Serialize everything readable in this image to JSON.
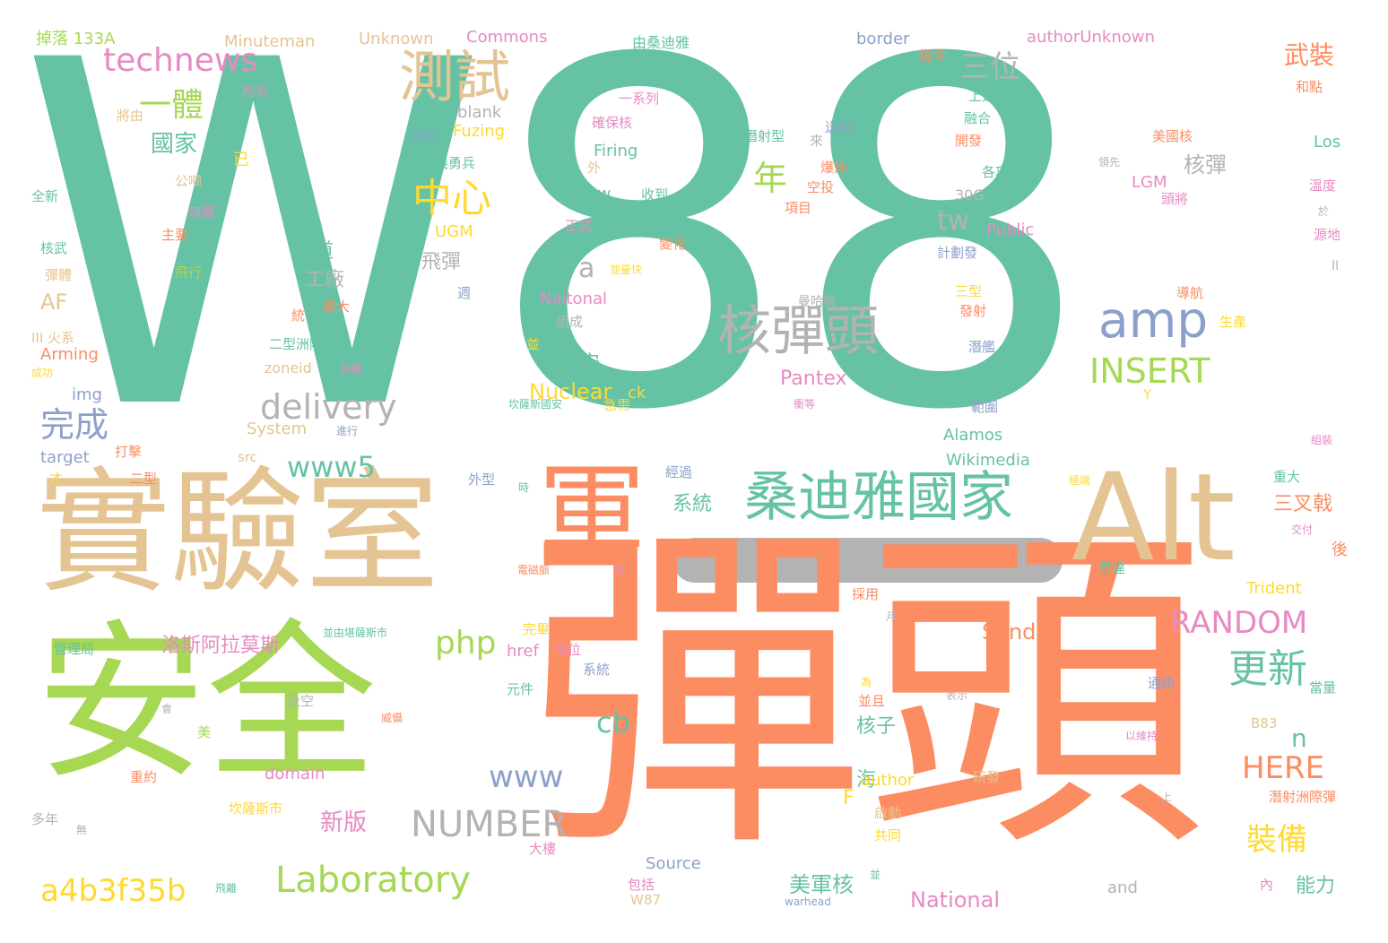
{
  "colors": {
    "green": "#66c2a5",
    "orange": "#fc8d62",
    "blue": "#8da0cb",
    "pink": "#e78ac3",
    "lime": "#a6d854",
    "yellow": "#ffd92f",
    "tan": "#e5c494",
    "gray": "#b3b3b3"
  },
  "words": [
    {
      "text": "W88",
      "color": "green"
    },
    {
      "text": "彈頭",
      "color": "orange"
    },
    {
      "text": "安全",
      "color": "lime"
    },
    {
      "text": "實驗室",
      "color": "tan"
    },
    {
      "text": "Alt",
      "color": "tan"
    },
    {
      "text": "軍",
      "color": "orange"
    },
    {
      "text": "桑迪雅國家",
      "color": "green"
    },
    {
      "text": "核彈頭",
      "color": "gray"
    },
    {
      "text": "amp",
      "color": "blue"
    },
    {
      "text": "INSERT",
      "color": "lime"
    },
    {
      "text": "測試",
      "color": "tan"
    },
    {
      "text": "technews",
      "color": "pink"
    },
    {
      "text": "一體",
      "color": "lime"
    },
    {
      "text": "三位",
      "color": "gray"
    },
    {
      "text": "中心",
      "color": "yellow"
    },
    {
      "text": "年",
      "color": "lime"
    },
    {
      "text": "delivery",
      "color": "gray"
    },
    {
      "text": "完成",
      "color": "blue"
    },
    {
      "text": "www5",
      "color": "green"
    },
    {
      "text": "RANDOM",
      "color": "pink"
    },
    {
      "text": "更新",
      "color": "green"
    },
    {
      "text": "php",
      "color": "lime"
    },
    {
      "text": "cb",
      "color": "green"
    },
    {
      "text": "www",
      "color": "blue"
    },
    {
      "text": "NUMBER",
      "color": "gray"
    },
    {
      "text": "Laboratory",
      "color": "lime"
    },
    {
      "text": "a4b3f35b",
      "color": "yellow"
    },
    {
      "text": "HERE",
      "color": "orange"
    },
    {
      "text": "裝備",
      "color": "yellow"
    },
    {
      "text": "tw",
      "color": "gray"
    },
    {
      "text": "a",
      "color": "gray"
    },
    {
      "text": "武裝",
      "color": "orange"
    },
    {
      "text": "國家",
      "color": "green"
    },
    {
      "text": "洛斯阿拉莫斯",
      "color": "pink"
    },
    {
      "text": "Nuclear",
      "color": "yellow"
    },
    {
      "text": "國安",
      "color": "green"
    },
    {
      "text": "Pantex",
      "color": "pink"
    },
    {
      "text": "National",
      "color": "pink"
    },
    {
      "text": "Sandia",
      "color": "orange"
    },
    {
      "text": "美軍核",
      "color": "green"
    },
    {
      "text": "新版",
      "color": "pink"
    },
    {
      "text": "核子",
      "color": "green"
    },
    {
      "text": "系統",
      "color": "green"
    },
    {
      "text": "能力",
      "color": "green"
    },
    {
      "text": "三叉戟",
      "color": "orange"
    },
    {
      "text": "n",
      "color": "green"
    },
    {
      "text": "飛彈",
      "color": "gray"
    },
    {
      "text": "核彈",
      "color": "gray"
    },
    {
      "text": "AF",
      "color": "tan"
    },
    {
      "text": "工廠",
      "color": "gray"
    },
    {
      "text": "道",
      "color": "green"
    },
    {
      "text": "海",
      "color": "green"
    },
    {
      "text": "F",
      "color": "yellow"
    },
    {
      "text": "掉落 133A",
      "color": "lime"
    },
    {
      "text": "Minuteman",
      "color": "tan"
    },
    {
      "text": "Unknown",
      "color": "tan"
    },
    {
      "text": "Commons",
      "color": "pink"
    },
    {
      "text": "由桑迪雅",
      "color": "green"
    },
    {
      "text": "能源部",
      "color": "green"
    },
    {
      "text": "border",
      "color": "blue"
    },
    {
      "text": "authorUnknown",
      "color": "pink"
    },
    {
      "text": "指令",
      "color": "orange"
    },
    {
      "text": "所有",
      "color": "pink"
    },
    {
      "text": "將由",
      "color": "tan"
    },
    {
      "text": "via",
      "color": "green"
    },
    {
      "text": "一系列",
      "color": "pink"
    },
    {
      "text": "blank",
      "color": "gray"
    },
    {
      "text": "Fuzing",
      "color": "yellow"
    },
    {
      "text": "確保核",
      "color": "pink"
    },
    {
      "text": "核心",
      "color": "blue"
    },
    {
      "text": "潛射型",
      "color": "green"
    },
    {
      "text": "來",
      "color": "gray"
    },
    {
      "text": "送到",
      "color": "blue"
    },
    {
      "text": "上週",
      "color": "green"
    },
    {
      "text": "融合",
      "color": "green"
    },
    {
      "text": "開發",
      "color": "orange"
    },
    {
      "text": "和點",
      "color": "orange"
    },
    {
      "text": "Los",
      "color": "green"
    },
    {
      "text": "美國核",
      "color": "orange"
    },
    {
      "text": "已",
      "color": "yellow"
    },
    {
      "text": "全新",
      "color": "green"
    },
    {
      "text": "公噸",
      "color": "tan"
    },
    {
      "text": "隸屬",
      "color": "pink"
    },
    {
      "text": "主要",
      "color": "orange"
    },
    {
      "text": "陸基義勇兵",
      "color": "green"
    },
    {
      "text": "Firing",
      "color": "green"
    },
    {
      "text": "外",
      "color": "tan"
    },
    {
      "text": "爆炸",
      "color": "orange"
    },
    {
      "text": "空投",
      "color": "orange"
    },
    {
      "text": "avw",
      "color": "green"
    },
    {
      "text": "收到",
      "color": "green"
    },
    {
      "text": "項目",
      "color": "orange"
    },
    {
      "text": "領先",
      "color": "gray"
    },
    {
      "text": "LGM",
      "color": "pink"
    },
    {
      "text": "頭將",
      "color": "pink"
    },
    {
      "text": "溫度",
      "color": "pink"
    },
    {
      "text": "各項",
      "color": "green"
    },
    {
      "text": "30G",
      "color": "gray"
    },
    {
      "text": "於",
      "color": "gray"
    },
    {
      "text": "源地",
      "color": "pink"
    },
    {
      "text": "正式",
      "color": "pink"
    },
    {
      "text": "Triad",
      "color": "green"
    },
    {
      "text": "Public",
      "color": "pink"
    },
    {
      "text": "計劃發",
      "color": "blue"
    },
    {
      "text": "核武",
      "color": "green"
    },
    {
      "text": "飛行",
      "color": "lime"
    },
    {
      "text": "UGM",
      "color": "yellow"
    },
    {
      "text": "變化",
      "color": "orange"
    },
    {
      "text": "II",
      "color": "gray"
    },
    {
      "text": "彈體",
      "color": "tan"
    },
    {
      "text": "並量快",
      "color": "yellow"
    },
    {
      "text": "三型",
      "color": "yellow"
    },
    {
      "text": "導航",
      "color": "orange"
    },
    {
      "text": "週",
      "color": "blue"
    },
    {
      "text": "Naitonal",
      "color": "pink"
    },
    {
      "text": "曼哈頓",
      "color": "gray"
    },
    {
      "text": "最大",
      "color": "orange"
    },
    {
      "text": "統",
      "color": "orange"
    },
    {
      "text": "組成",
      "color": "gray"
    },
    {
      "text": "發射",
      "color": "orange"
    },
    {
      "text": "生產",
      "color": "yellow"
    },
    {
      "text": "III 火系",
      "color": "tan"
    },
    {
      "text": "二型洲際彈",
      "color": "green"
    },
    {
      "text": "並",
      "color": "yellow"
    },
    {
      "text": "潛艦",
      "color": "blue"
    },
    {
      "text": "Arming",
      "color": "orange"
    },
    {
      "text": "成功",
      "color": "yellow"
    },
    {
      "text": "zoneid",
      "color": "tan"
    },
    {
      "text": "防震",
      "color": "pink"
    },
    {
      "text": "img",
      "color": "blue"
    },
    {
      "text": "ck",
      "color": "yellow"
    },
    {
      "text": "坎薩斯國安",
      "color": "green"
    },
    {
      "text": "急需",
      "color": "yellow"
    },
    {
      "text": "衝等",
      "color": "pink"
    },
    {
      "text": "Y",
      "color": "yellow"
    },
    {
      "text": "範圍",
      "color": "blue"
    },
    {
      "text": "System",
      "color": "tan"
    },
    {
      "text": "進行",
      "color": "blue"
    },
    {
      "text": "Alamos",
      "color": "green"
    },
    {
      "text": "組裝",
      "color": "pink"
    },
    {
      "text": "target",
      "color": "blue"
    },
    {
      "text": "打擊",
      "color": "orange"
    },
    {
      "text": "src",
      "color": "tan"
    },
    {
      "text": "Wikimedia",
      "color": "green"
    },
    {
      "text": "才",
      "color": "yellow"
    },
    {
      "text": "二型",
      "color": "orange"
    },
    {
      "text": "外型",
      "color": "blue"
    },
    {
      "text": "時",
      "color": "green"
    },
    {
      "text": "經過",
      "color": "blue"
    },
    {
      "text": "極端",
      "color": "yellow"
    },
    {
      "text": "重大",
      "color": "green"
    },
    {
      "text": "交付",
      "color": "pink"
    },
    {
      "text": "後",
      "color": "orange"
    },
    {
      "text": "電磁脈",
      "color": "orange"
    },
    {
      "text": "噸",
      "color": "pink"
    },
    {
      "text": "雷達",
      "color": "green"
    },
    {
      "text": "Trident",
      "color": "yellow"
    },
    {
      "text": "採用",
      "color": "orange"
    },
    {
      "text": "月",
      "color": "gray"
    },
    {
      "text": "並由堪薩斯市",
      "color": "green"
    },
    {
      "text": "完畢",
      "color": "yellow"
    },
    {
      "text": "href",
      "color": "pink"
    },
    {
      "text": "地位",
      "color": "pink"
    },
    {
      "text": "管理局",
      "color": "green"
    },
    {
      "text": "系統",
      "color": "blue"
    },
    {
      "text": "元件",
      "color": "green"
    },
    {
      "text": "及空",
      "color": "gray"
    },
    {
      "text": "為",
      "color": "yellow"
    },
    {
      "text": "並且",
      "color": "orange"
    },
    {
      "text": "表示",
      "color": "gray"
    },
    {
      "text": "通訊",
      "color": "blue"
    },
    {
      "text": "當量",
      "color": "green"
    },
    {
      "text": "會",
      "color": "gray"
    },
    {
      "text": "美",
      "color": "lime"
    },
    {
      "text": "威懾",
      "color": "orange"
    },
    {
      "text": "B83",
      "color": "tan"
    },
    {
      "text": "以維持",
      "color": "pink"
    },
    {
      "text": "domain",
      "color": "pink"
    },
    {
      "text": "author",
      "color": "yellow"
    },
    {
      "text": "研發",
      "color": "tan"
    },
    {
      "text": "重約",
      "color": "orange"
    },
    {
      "text": "坎薩斯市",
      "color": "yellow"
    },
    {
      "text": "多年",
      "color": "gray"
    },
    {
      "text": "上",
      "color": "gray"
    },
    {
      "text": "潛射洲際彈",
      "color": "orange"
    },
    {
      "text": "啟動",
      "color": "tan"
    },
    {
      "text": "無",
      "color": "gray"
    },
    {
      "text": "共同",
      "color": "yellow"
    },
    {
      "text": "大樓",
      "color": "pink"
    },
    {
      "text": "Source",
      "color": "blue"
    },
    {
      "text": "包括",
      "color": "pink"
    },
    {
      "text": "and",
      "color": "gray"
    },
    {
      "text": "內",
      "color": "pink"
    },
    {
      "text": "飛離",
      "color": "green"
    },
    {
      "text": "W87",
      "color": "tan"
    },
    {
      "text": "warhead",
      "color": "blue"
    },
    {
      "text": "並",
      "color": "green"
    }
  ]
}
